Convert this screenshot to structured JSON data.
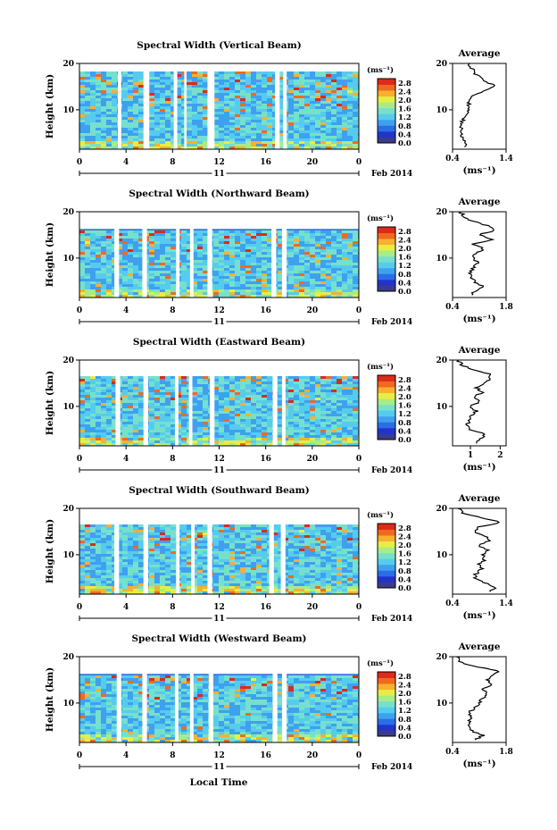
{
  "figure": {
    "date_label": "Feb 2014",
    "day_label": "11",
    "xlabel": "Local Time",
    "avg_title": "Average",
    "avg_xlabel": "(ms⁻¹)",
    "colorbar_unit": "(ms⁻¹)"
  },
  "colors": {
    "scale": [
      "#3b3b8a",
      "#2233cc",
      "#2a6ee6",
      "#3fa0f0",
      "#55ccee",
      "#77e0cc",
      "#a8ec88",
      "#e6ee44",
      "#f7b030",
      "#f06a1e",
      "#dd2a1a"
    ]
  },
  "chart_data": [
    {
      "type": "heatmap",
      "title": "Spectral Width (Vertical Beam)",
      "ylabel": "Height (km)",
      "x_ticks": [
        "0",
        "4",
        "8",
        "12",
        "16",
        "20",
        "0"
      ],
      "y_ticks": [
        "10",
        "20"
      ],
      "xlim": [
        0,
        24
      ],
      "ylim": [
        1.5,
        20
      ],
      "colorbar_ticks": [
        "0.0",
        "0.4",
        "0.8",
        "1.2",
        "1.6",
        "2.0",
        "2.4",
        "2.8"
      ],
      "colorbar_range": [
        0,
        3.0
      ],
      "gaps_hours": [
        [
          3.3,
          3.6
        ],
        [
          5.5,
          6.0
        ],
        [
          8.1,
          8.4
        ],
        [
          9.0,
          9.2
        ],
        [
          11.0,
          11.6
        ],
        [
          16.8,
          17.2
        ],
        [
          17.5,
          17.8
        ]
      ],
      "average_profile": {
        "xlim": [
          0.4,
          1.4
        ],
        "x_ticks": [
          "0.4",
          "1.4"
        ],
        "y_ticks": [
          "10",
          "20"
        ],
        "points": [
          [
            0.62,
            2
          ],
          [
            0.65,
            3
          ],
          [
            0.58,
            4
          ],
          [
            0.55,
            5
          ],
          [
            0.57,
            6
          ],
          [
            0.55,
            7
          ],
          [
            0.6,
            8
          ],
          [
            0.65,
            9
          ],
          [
            0.68,
            10
          ],
          [
            0.7,
            11
          ],
          [
            0.72,
            12
          ],
          [
            0.78,
            13
          ],
          [
            0.95,
            14
          ],
          [
            1.2,
            15
          ],
          [
            1.05,
            16
          ],
          [
            0.9,
            17
          ],
          [
            0.8,
            18
          ],
          [
            0.75,
            19
          ],
          [
            0.72,
            20
          ]
        ]
      }
    },
    {
      "type": "heatmap",
      "title": "Spectral Width (Northward Beam)",
      "ylabel": "Height (km)",
      "x_ticks": [
        "0",
        "4",
        "8",
        "12",
        "16",
        "20",
        "0"
      ],
      "y_ticks": [
        "10",
        "20"
      ],
      "xlim": [
        0,
        24
      ],
      "ylim": [
        1.5,
        20
      ],
      "colorbar_ticks": [
        "0.0",
        "0.4",
        "0.8",
        "1.2",
        "1.6",
        "2.0",
        "2.4",
        "2.8"
      ],
      "colorbar_range": [
        0,
        3.0
      ],
      "gaps_hours": [
        [
          3.0,
          3.4
        ],
        [
          5.4,
          5.8
        ],
        [
          8.3,
          8.6
        ],
        [
          9.5,
          9.8
        ],
        [
          11.0,
          11.4
        ],
        [
          16.5,
          16.9
        ],
        [
          17.4,
          17.8
        ]
      ],
      "average_profile": {
        "xlim": [
          0.4,
          1.8
        ],
        "x_ticks": [
          "0.4",
          "1.8"
        ],
        "y_ticks": [
          "10",
          "20"
        ],
        "points": [
          [
            0.9,
            2
          ],
          [
            1.0,
            3
          ],
          [
            1.2,
            4
          ],
          [
            0.95,
            5
          ],
          [
            0.9,
            6
          ],
          [
            0.85,
            7
          ],
          [
            0.95,
            8
          ],
          [
            1.05,
            9
          ],
          [
            0.95,
            10
          ],
          [
            1.0,
            11
          ],
          [
            1.2,
            12
          ],
          [
            0.95,
            13
          ],
          [
            1.4,
            14
          ],
          [
            1.1,
            15
          ],
          [
            1.5,
            16
          ],
          [
            1.3,
            17
          ],
          [
            0.9,
            18
          ],
          [
            0.7,
            19
          ],
          [
            0.6,
            20
          ]
        ]
      }
    },
    {
      "type": "heatmap",
      "title": "Spectral Width (Eastward Beam)",
      "ylabel": "Height (km)",
      "x_ticks": [
        "0",
        "4",
        "8",
        "12",
        "16",
        "20",
        "0"
      ],
      "y_ticks": [
        "10",
        "20"
      ],
      "xlim": [
        0,
        24
      ],
      "ylim": [
        1.5,
        20
      ],
      "colorbar_ticks": [
        "0.0",
        "0.4",
        "0.8",
        "1.2",
        "1.6",
        "2.0",
        "2.4",
        "2.8"
      ],
      "colorbar_range": [
        0,
        3.0
      ],
      "gaps_hours": [
        [
          3.1,
          3.5
        ],
        [
          5.5,
          5.9
        ],
        [
          8.2,
          8.5
        ],
        [
          9.4,
          9.7
        ],
        [
          11.2,
          11.6
        ],
        [
          16.6,
          17.0
        ],
        [
          17.4,
          17.7
        ]
      ],
      "average_profile": {
        "xlim": [
          0.4,
          2.2
        ],
        "x_ticks": [
          "1",
          "2"
        ],
        "x_tick_values": [
          1,
          2
        ],
        "y_ticks": [
          "10",
          "20"
        ],
        "points": [
          [
            1.2,
            2
          ],
          [
            1.3,
            3
          ],
          [
            1.5,
            4
          ],
          [
            1.0,
            5
          ],
          [
            0.9,
            6
          ],
          [
            0.95,
            7
          ],
          [
            1.0,
            8
          ],
          [
            1.2,
            9
          ],
          [
            1.0,
            10
          ],
          [
            1.3,
            11
          ],
          [
            1.1,
            12
          ],
          [
            1.4,
            13
          ],
          [
            1.2,
            14
          ],
          [
            1.5,
            15
          ],
          [
            1.7,
            16
          ],
          [
            1.6,
            17
          ],
          [
            1.0,
            18
          ],
          [
            0.7,
            19
          ],
          [
            0.6,
            20
          ]
        ]
      }
    },
    {
      "type": "heatmap",
      "title": "Spectral Width (Southward Beam)",
      "ylabel": "Height (km)",
      "x_ticks": [
        "0",
        "4",
        "8",
        "12",
        "16",
        "20",
        "0"
      ],
      "y_ticks": [
        "10",
        "20"
      ],
      "xlim": [
        0,
        24
      ],
      "ylim": [
        1.5,
        20
      ],
      "colorbar_ticks": [
        "0.0",
        "0.4",
        "0.8",
        "1.2",
        "1.6",
        "2.0",
        "2.4",
        "2.8"
      ],
      "colorbar_range": [
        0,
        3.0
      ],
      "gaps_hours": [
        [
          3.0,
          3.4
        ],
        [
          5.5,
          5.9
        ],
        [
          8.3,
          8.6
        ],
        [
          9.6,
          9.9
        ],
        [
          11.0,
          11.4
        ],
        [
          16.3,
          16.7
        ],
        [
          17.3,
          17.7
        ]
      ],
      "average_profile": {
        "xlim": [
          0.4,
          1.4
        ],
        "x_ticks": [
          "0.4",
          "1.4"
        ],
        "y_ticks": [
          "10",
          "20"
        ],
        "points": [
          [
            1.1,
            2
          ],
          [
            1.2,
            3
          ],
          [
            1.0,
            4
          ],
          [
            0.8,
            5
          ],
          [
            0.85,
            6
          ],
          [
            0.95,
            7
          ],
          [
            0.9,
            8
          ],
          [
            1.0,
            9
          ],
          [
            0.95,
            10
          ],
          [
            1.05,
            11
          ],
          [
            0.9,
            12
          ],
          [
            1.1,
            13
          ],
          [
            1.0,
            14
          ],
          [
            0.8,
            15
          ],
          [
            0.9,
            16
          ],
          [
            1.3,
            17
          ],
          [
            0.9,
            18
          ],
          [
            0.6,
            19
          ],
          [
            0.5,
            20
          ]
        ]
      }
    },
    {
      "type": "heatmap",
      "title": "Spectral Width (Westward Beam)",
      "ylabel": "Height (km)",
      "x_ticks": [
        "0",
        "4",
        "8",
        "12",
        "16",
        "20",
        "0"
      ],
      "y_ticks": [
        "10",
        "20"
      ],
      "xlim": [
        0,
        24
      ],
      "ylim": [
        1.5,
        20
      ],
      "colorbar_ticks": [
        "0.0",
        "0.4",
        "0.8",
        "1.2",
        "1.6",
        "2.0",
        "2.4",
        "2.8"
      ],
      "colorbar_range": [
        0,
        3.0
      ],
      "gaps_hours": [
        [
          3.2,
          3.6
        ],
        [
          5.4,
          5.8
        ],
        [
          8.2,
          8.5
        ],
        [
          9.5,
          9.8
        ],
        [
          11.1,
          11.5
        ],
        [
          16.6,
          17.0
        ],
        [
          17.4,
          17.8
        ]
      ],
      "average_profile": {
        "xlim": [
          0.4,
          1.8
        ],
        "x_ticks": [
          "0.4",
          "1.8"
        ],
        "y_ticks": [
          "10",
          "20"
        ],
        "points": [
          [
            1.0,
            2
          ],
          [
            1.2,
            3
          ],
          [
            0.9,
            4
          ],
          [
            0.8,
            5
          ],
          [
            0.85,
            6
          ],
          [
            0.9,
            7
          ],
          [
            0.8,
            8
          ],
          [
            1.0,
            9
          ],
          [
            1.1,
            10
          ],
          [
            1.2,
            11
          ],
          [
            1.3,
            12
          ],
          [
            1.2,
            13
          ],
          [
            1.4,
            14
          ],
          [
            1.3,
            15
          ],
          [
            1.5,
            16
          ],
          [
            1.6,
            17
          ],
          [
            0.9,
            18
          ],
          [
            0.6,
            19
          ],
          [
            0.5,
            20
          ]
        ]
      }
    }
  ]
}
